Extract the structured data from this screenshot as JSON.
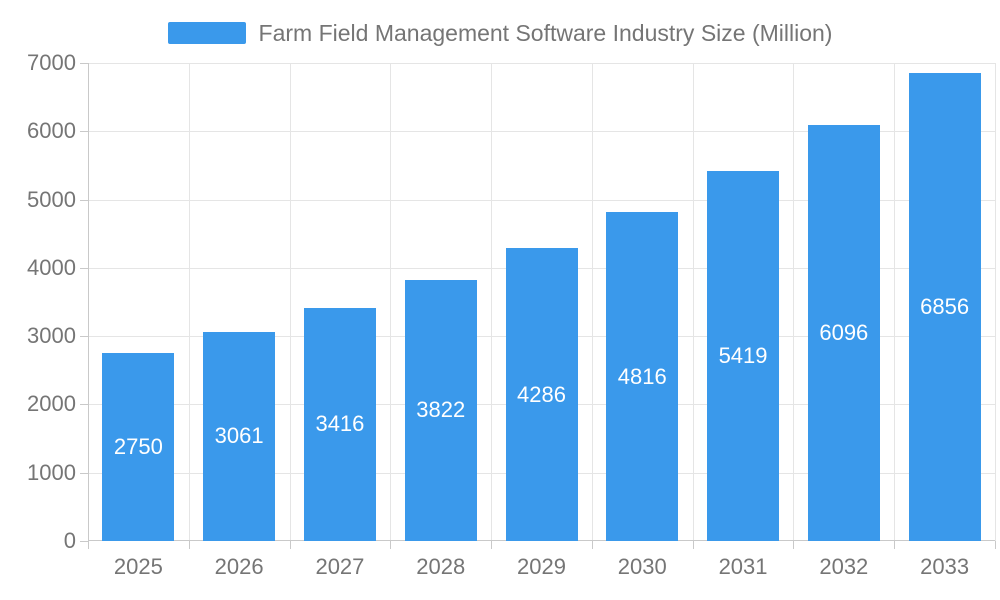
{
  "chart_data": {
    "type": "bar",
    "title": "Farm Field Management Software Industry Size (Million)",
    "categories": [
      "2025",
      "2026",
      "2027",
      "2028",
      "2029",
      "2030",
      "2031",
      "2032",
      "2033"
    ],
    "values": [
      2750,
      3061,
      3416,
      3822,
      4286,
      4816,
      5419,
      6096,
      6856
    ],
    "xlabel": "",
    "ylabel": "",
    "ylim": [
      0,
      7000
    ],
    "yticks": [
      0,
      1000,
      2000,
      3000,
      4000,
      5000,
      6000,
      7000
    ],
    "grid": true,
    "legend_position": "top-center",
    "colors": {
      "bar": "#3A99EB",
      "axis_text": "#757575",
      "bar_value_text": "#FFFFFF",
      "grid_line": "#E5E5E5",
      "axis_line": "#C9C9C9",
      "background": "#FFFFFF"
    }
  }
}
